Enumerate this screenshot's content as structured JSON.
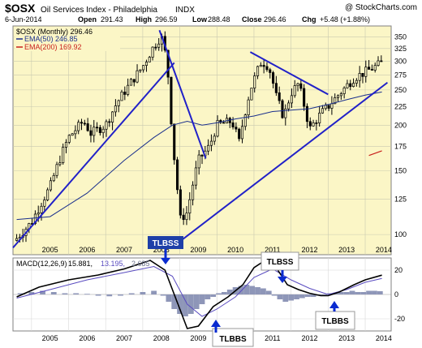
{
  "header": {
    "symbol": "$OSX",
    "name": "Oil Services Index - Philadelphia",
    "exchange": "INDX",
    "watermark": "@ StockCharts.com",
    "date": "6-Jun-2014",
    "open_label": "Open",
    "open": "291.43",
    "high_label": "High",
    "high": "296.59",
    "low_label": "Low",
    "low": "288.48",
    "close_label": "Close",
    "close": "296.46",
    "chg_label": "Chg",
    "chg": "+5.48 (+1.88%)"
  },
  "legend": {
    "price": "$OSX (Monthly) 296.46",
    "ema50": "EMA(50) 246.85",
    "ema200": "EMA(200) 169.92"
  },
  "macd_legend": {
    "label": "MACD(12,26,9)",
    "macd": "15.881,",
    "signal": "13.195,",
    "hist": "2.685"
  },
  "colors": {
    "plot_bg": "#fbf6c6",
    "grid": "#c9c9b0",
    "candle": "#000000",
    "ema50": "#1a2f8c",
    "ema200": "#c8201c",
    "trendline": "#2121c8",
    "macd": "#000000",
    "signal": "#5a4cc0",
    "hist": "#8e96b8",
    "annotation_bg": "#1e3fa8",
    "annotation_text": "#ffffff",
    "arrow": "#0a2bd0"
  },
  "annotations": [
    "TLBSS",
    "TLBBS",
    "TLBSS",
    "TLBBS"
  ],
  "chart_data": [
    {
      "type": "candlestick",
      "title": "$OSX Oil Services Index - Philadelphia INDX",
      "x_ticks": [
        "2005",
        "2006",
        "2007",
        "2008",
        "2009",
        "2010",
        "2011",
        "2012",
        "2013",
        "2014"
      ],
      "y_ticks": [
        100,
        125,
        150,
        175,
        200,
        225,
        250,
        275,
        300,
        325,
        350
      ],
      "y_scale": "log",
      "ylim": [
        88,
        375
      ],
      "xlim": [
        2004.5,
        2014.7
      ],
      "ema50": [
        [
          2004.6,
          110
        ],
        [
          2005.5,
          112
        ],
        [
          2006.5,
          130
        ],
        [
          2007.5,
          160
        ],
        [
          2008.3,
          185
        ],
        [
          2008.8,
          200
        ],
        [
          2009.2,
          205
        ],
        [
          2009.6,
          200
        ],
        [
          2010.0,
          203
        ],
        [
          2010.5,
          208
        ],
        [
          2011.0,
          212
        ],
        [
          2011.5,
          218
        ],
        [
          2012.0,
          220
        ],
        [
          2012.5,
          222
        ],
        [
          2013.0,
          228
        ],
        [
          2013.5,
          235
        ],
        [
          2014.0,
          242
        ],
        [
          2014.45,
          246.85
        ]
      ],
      "ema200": [
        [
          2014.1,
          165
        ],
        [
          2014.45,
          169.92
        ]
      ],
      "trendlines": [
        {
          "from": [
            2004.5,
            92
          ],
          "to": [
            2008.85,
            297
          ]
        },
        {
          "from": [
            2008.45,
            365
          ],
          "to": [
            2009.7,
            162
          ]
        },
        {
          "from": [
            2008.9,
            94
          ],
          "to": [
            2014.6,
            262
          ]
        },
        {
          "from": [
            2010.9,
            318
          ],
          "to": [
            2013.0,
            243
          ]
        }
      ]
    },
    {
      "type": "line",
      "title": "MACD(12,26,9)",
      "y_ticks": [
        20,
        0,
        -20
      ],
      "ylim": [
        -30,
        30
      ],
      "macd": [
        [
          2004.6,
          -2
        ],
        [
          2005.2,
          6
        ],
        [
          2006.0,
          12
        ],
        [
          2006.8,
          16
        ],
        [
          2007.5,
          21
        ],
        [
          2008.2,
          28
        ],
        [
          2008.6,
          20
        ],
        [
          2008.95,
          -8
        ],
        [
          2009.2,
          -28
        ],
        [
          2009.5,
          -26
        ],
        [
          2009.9,
          -10
        ],
        [
          2010.3,
          -2
        ],
        [
          2010.7,
          8
        ],
        [
          2011.0,
          22
        ],
        [
          2011.3,
          28
        ],
        [
          2011.6,
          22
        ],
        [
          2011.9,
          8
        ],
        [
          2012.2,
          4
        ],
        [
          2012.5,
          1
        ],
        [
          2012.8,
          -1
        ],
        [
          2013.0,
          -1
        ],
        [
          2013.3,
          2
        ],
        [
          2013.7,
          8
        ],
        [
          2014.0,
          12
        ],
        [
          2014.45,
          15.881
        ]
      ],
      "signal": [
        [
          2004.6,
          -3
        ],
        [
          2005.5,
          4
        ],
        [
          2006.5,
          12
        ],
        [
          2007.5,
          18
        ],
        [
          2008.3,
          23
        ],
        [
          2008.8,
          15
        ],
        [
          2009.2,
          -8
        ],
        [
          2009.6,
          -18
        ],
        [
          2010.0,
          -12
        ],
        [
          2010.5,
          -2
        ],
        [
          2011.0,
          14
        ],
        [
          2011.5,
          21
        ],
        [
          2012.0,
          12
        ],
        [
          2012.5,
          5
        ],
        [
          2013.0,
          0
        ],
        [
          2013.5,
          4
        ],
        [
          2014.0,
          10
        ],
        [
          2014.45,
          13.195
        ]
      ],
      "histogram": [
        [
          2004.7,
          1
        ],
        [
          2005.0,
          2
        ],
        [
          2005.3,
          3
        ],
        [
          2005.6,
          2
        ],
        [
          2005.9,
          1
        ],
        [
          2006.2,
          1
        ],
        [
          2006.5,
          0.5
        ],
        [
          2006.8,
          -1
        ],
        [
          2007.1,
          -1.5
        ],
        [
          2007.4,
          -1
        ],
        [
          2007.7,
          1
        ],
        [
          2008.0,
          2
        ],
        [
          2008.3,
          3
        ],
        [
          2008.55,
          -1
        ],
        [
          2008.7,
          -6
        ],
        [
          2008.85,
          -12
        ],
        [
          2009.0,
          -16
        ],
        [
          2009.15,
          -18
        ],
        [
          2009.3,
          -16
        ],
        [
          2009.45,
          -12
        ],
        [
          2009.6,
          -8
        ],
        [
          2009.75,
          -4
        ],
        [
          2009.9,
          -2
        ],
        [
          2010.05,
          1
        ],
        [
          2010.2,
          2
        ],
        [
          2010.35,
          4
        ],
        [
          2010.5,
          6
        ],
        [
          2010.65,
          7
        ],
        [
          2010.8,
          8
        ],
        [
          2010.95,
          7
        ],
        [
          2011.1,
          6
        ],
        [
          2011.25,
          5
        ],
        [
          2011.4,
          3
        ],
        [
          2011.55,
          -1
        ],
        [
          2011.7,
          -4
        ],
        [
          2011.85,
          -6
        ],
        [
          2012.0,
          -5
        ],
        [
          2012.15,
          -4
        ],
        [
          2012.3,
          -3
        ],
        [
          2012.45,
          -2
        ],
        [
          2012.6,
          -2
        ],
        [
          2012.75,
          -1
        ],
        [
          2012.9,
          -1
        ],
        [
          2013.05,
          1
        ],
        [
          2013.2,
          1
        ],
        [
          2013.35,
          2
        ],
        [
          2013.5,
          2
        ],
        [
          2013.65,
          3
        ],
        [
          2013.8,
          2
        ],
        [
          2013.95,
          2
        ],
        [
          2014.1,
          3
        ],
        [
          2014.25,
          3
        ],
        [
          2014.4,
          2.685
        ]
      ]
    }
  ]
}
